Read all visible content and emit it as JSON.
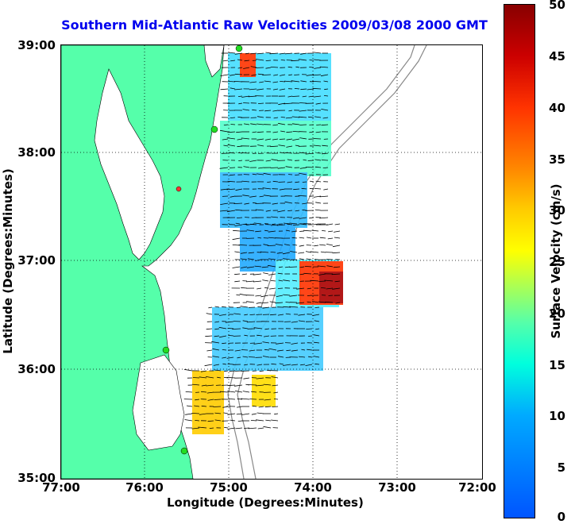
{
  "title": "Southern Mid-Atlantic Raw Velocities 2009/03/08 2000 GMT",
  "xaxis": {
    "label": "Longitude (Degrees:Minutes)",
    "ticks": [
      "77:00",
      "76:00",
      "75:00",
      "74:00",
      "73:00",
      "72:00"
    ]
  },
  "yaxis": {
    "label": "Latitude (Degrees:Minutes)",
    "ticks": [
      "39:00",
      "38:00",
      "37:00",
      "36:00",
      "35:00"
    ]
  },
  "colorbar": {
    "label": "Surface Velocity (cm/s)",
    "ticks": [
      "50",
      "45",
      "40",
      "35",
      "30",
      "25",
      "20",
      "15",
      "10",
      "5",
      "0"
    ],
    "min": 0,
    "max": 50
  },
  "colors": {
    "land": "#55ffaa",
    "title": "#0000ee",
    "arrow": "#000000",
    "station": "#22dd22"
  }
}
